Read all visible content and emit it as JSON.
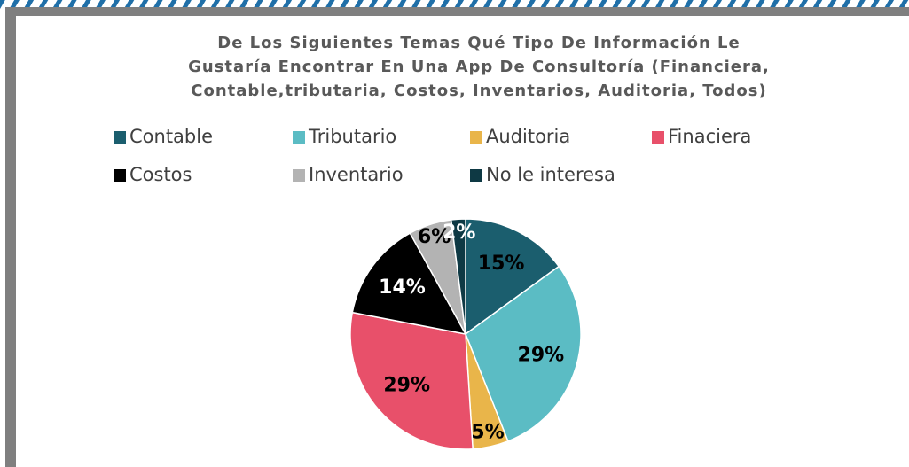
{
  "chart_data": {
    "type": "pie",
    "title": "De Los Siguientes Temas Qué Tipo De Información Le Gustaría Encontrar En Una App De Consultoría (Financiera, Contable,tributaria, Costos, Inventarios, Auditoria, Todos)",
    "categories": [
      "Contable",
      "Tributario",
      "Auditoria",
      "Finaciera",
      "Costos",
      "Inventario",
      "No le interesa"
    ],
    "values": [
      15,
      29,
      5,
      29,
      14,
      6,
      2
    ],
    "value_labels": [
      "15%",
      "29%",
      "5%",
      "29%",
      "14%",
      "6%",
      "2%"
    ],
    "colors": [
      "#1b5e6e",
      "#5bbcc4",
      "#e9b54a",
      "#e8506a",
      "#000000",
      "#b3b3b3",
      "#0e3944"
    ],
    "legend": "top"
  }
}
